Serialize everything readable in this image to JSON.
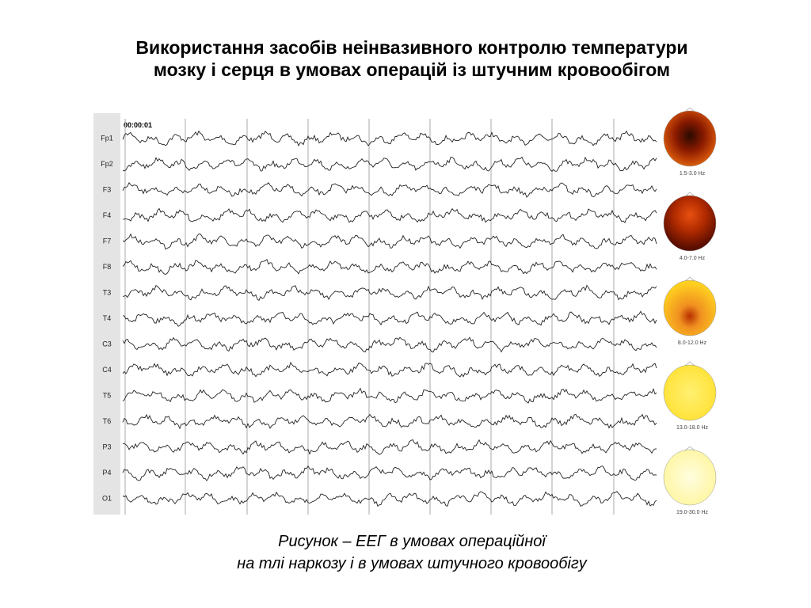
{
  "title": [
    "Використання засобів неінвазивного контролю температури",
    "мозку і серця в умовах операцій із штучним кровообігом"
  ],
  "figure": {
    "timestamp": "00:00:01",
    "channels": [
      "Fp1",
      "Fp2",
      "F3",
      "F4",
      "F7",
      "F8",
      "T3",
      "T4",
      "C3",
      "C4",
      "T5",
      "T6",
      "P3",
      "P4",
      "O1"
    ],
    "topomaps": [
      "1.5-3.0 Hz",
      "4.0-7.0 Hz",
      "8.0-12.0 Hz",
      "13.0-18.0 Hz",
      "19.0-30.0 Hz"
    ]
  },
  "caption": [
    "Рисунок – ЕЕГ в умовах операційної",
    "на тлі наркозу і в умовах штучного кровообігу"
  ]
}
